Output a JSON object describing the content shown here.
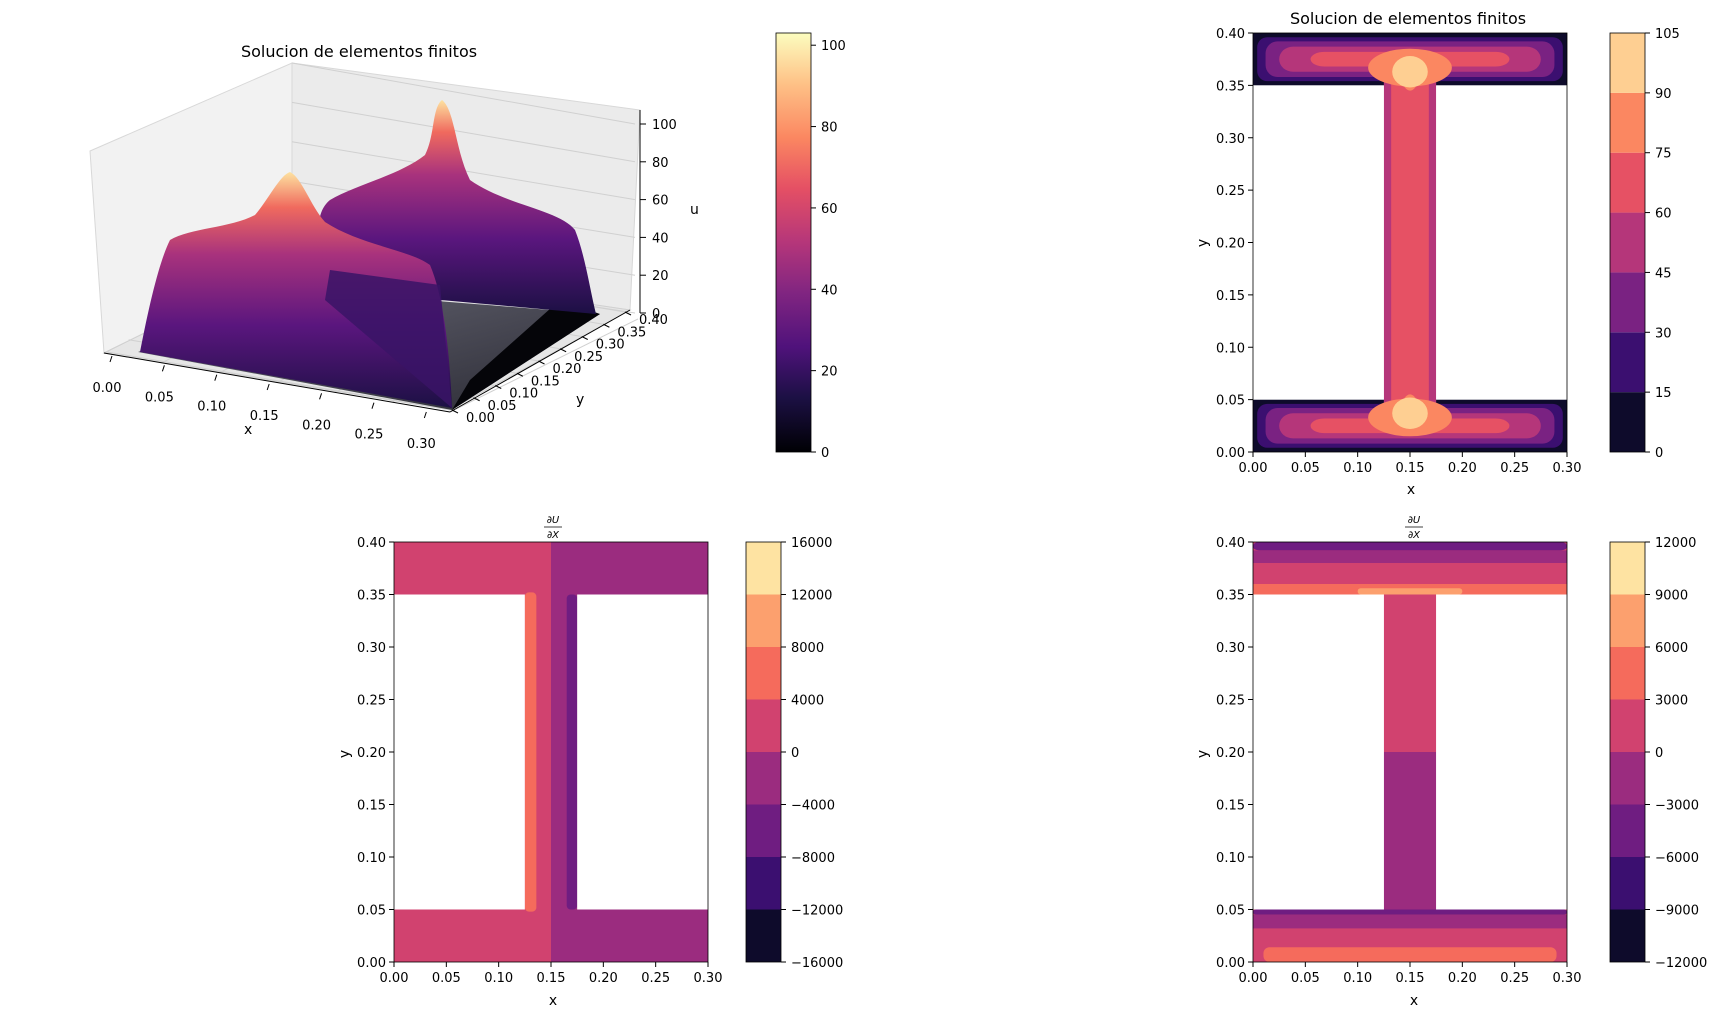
{
  "chart_data": [
    {
      "type": "surface3d",
      "title": "Solucion de elementos finitos",
      "xlabel": "x",
      "ylabel": "y",
      "zlabel": "u",
      "xticks": [
        "0.00",
        "0.05",
        "0.10",
        "0.15",
        "0.20",
        "0.25",
        "0.30"
      ],
      "yticks": [
        "0.00",
        "0.05",
        "0.10",
        "0.15",
        "0.20",
        "0.25",
        "0.30",
        "0.35",
        "0.40"
      ],
      "zticks": [
        "0",
        "20",
        "40",
        "60",
        "80",
        "100"
      ],
      "xlim": [
        0,
        0.3
      ],
      "ylim": [
        0,
        0.4
      ],
      "zlim": [
        0,
        105
      ],
      "colormap": "magma",
      "colorbar": {
        "ticks": [
          "0",
          "20",
          "40",
          "60",
          "80",
          "100"
        ],
        "range": [
          0,
          103
        ]
      },
      "peaks": [
        {
          "x": 0.15,
          "y": 0.03,
          "u": 102
        },
        {
          "x": 0.15,
          "y": 0.37,
          "u": 102
        }
      ],
      "flat_region_value": 0
    },
    {
      "type": "contourf",
      "title": "Solucion de elementos finitos",
      "xlabel": "x",
      "ylabel": "y",
      "xticks": [
        "0.00",
        "0.05",
        "0.10",
        "0.15",
        "0.20",
        "0.25",
        "0.30"
      ],
      "yticks": [
        "0.00",
        "0.05",
        "0.10",
        "0.15",
        "0.20",
        "0.25",
        "0.30",
        "0.35",
        "0.40"
      ],
      "xlim": [
        0,
        0.3
      ],
      "ylim": [
        0,
        0.4
      ],
      "colormap": "magma",
      "levels": [
        "0",
        "15",
        "30",
        "45",
        "60",
        "75",
        "90",
        "105"
      ],
      "domain": "I-beam: flanges y in [0,0.05] and [0.35,0.40], web x in [0.125,0.175]"
    },
    {
      "type": "contourf",
      "title": "∂U/∂X",
      "title_num": "∂U",
      "title_den": "∂X",
      "xlabel": "x",
      "ylabel": "y",
      "xticks": [
        "0.00",
        "0.05",
        "0.10",
        "0.15",
        "0.20",
        "0.25",
        "0.30"
      ],
      "yticks": [
        "0.00",
        "0.05",
        "0.10",
        "0.15",
        "0.20",
        "0.25",
        "0.30",
        "0.35",
        "0.40"
      ],
      "xlim": [
        0,
        0.3
      ],
      "ylim": [
        0,
        0.4
      ],
      "colormap": "magma",
      "levels": [
        "−16000",
        "−12000",
        "−8000",
        "−4000",
        "0",
        "4000",
        "8000",
        "12000",
        "16000"
      ]
    },
    {
      "type": "contourf",
      "title": "∂U/∂X",
      "title_num": "∂U",
      "title_den": "∂X",
      "xlabel": "x",
      "ylabel": "y",
      "xticks": [
        "0.00",
        "0.05",
        "0.10",
        "0.15",
        "0.20",
        "0.25",
        "0.30"
      ],
      "yticks": [
        "0.00",
        "0.05",
        "0.10",
        "0.15",
        "0.20",
        "0.25",
        "0.30",
        "0.35",
        "0.40"
      ],
      "xlim": [
        0,
        0.3
      ],
      "ylim": [
        0,
        0.4
      ],
      "colormap": "magma",
      "levels": [
        "−12000",
        "−9000",
        "−6000",
        "−3000",
        "0",
        "3000",
        "6000",
        "9000",
        "12000"
      ]
    }
  ],
  "palettes": {
    "p2": [
      "#0e0b2b",
      "#3b0f70",
      "#7a2282",
      "#b5367a",
      "#e65164",
      "#fb8761",
      "#fecf92"
    ],
    "p34": [
      "#0e0b2b",
      "#3b0f70",
      "#6f1d81",
      "#9b2c7f",
      "#d1426f",
      "#f56b5c",
      "#fca06e",
      "#fee3a2"
    ],
    "magma": [
      "#000004",
      "#1c1044",
      "#4f127b",
      "#812581",
      "#b5367a",
      "#e55064",
      "#fb8761",
      "#fec287",
      "#fcfdbf"
    ]
  }
}
